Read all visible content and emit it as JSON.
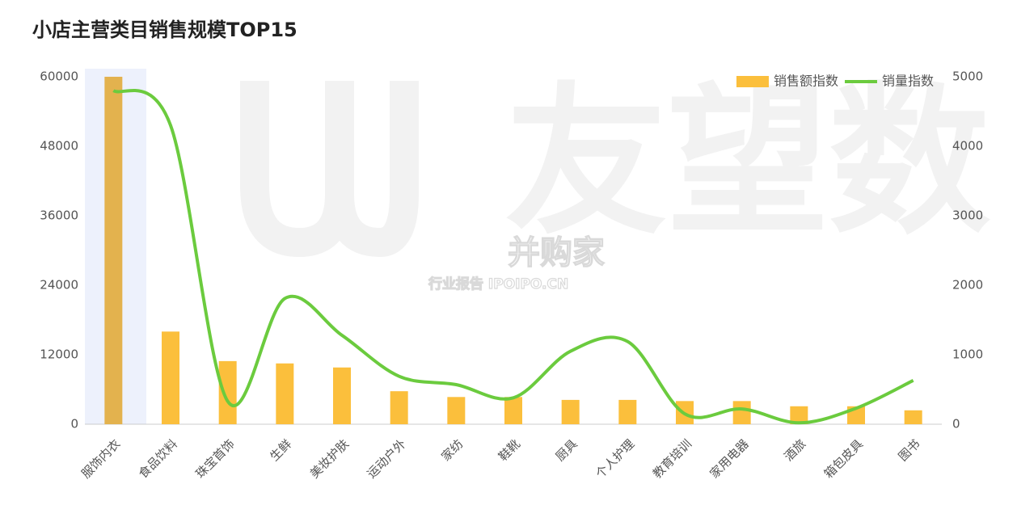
{
  "chart_data": {
    "type": "bar-line",
    "title": "小店主营类目销售规模TOP15",
    "categories": [
      "服饰内衣",
      "食品饮料",
      "珠宝首饰",
      "生鲜",
      "美妆护肤",
      "运动户外",
      "家纺",
      "鞋靴",
      "厨具",
      "个人护理",
      "教育培训",
      "家用电器",
      "酒旅",
      "箱包皮具",
      "图书"
    ],
    "series": [
      {
        "name": "销售额指数",
        "type": "bar",
        "color": "#fbbf3c",
        "values": [
          60000,
          16000,
          10900,
          10500,
          9800,
          5700,
          4700,
          4700,
          4200,
          4200,
          4000,
          4000,
          3100,
          3100,
          2400
        ]
      },
      {
        "name": "销量指数",
        "type": "line",
        "axis": "y2",
        "color": "#6bcb3e",
        "values": [
          4800,
          4300,
          330,
          1810,
          1280,
          690,
          570,
          380,
          1050,
          1190,
          150,
          220,
          20,
          230,
          630
        ]
      }
    ],
    "ylim": [
      0,
      60000
    ],
    "yticks": [
      0,
      12000,
      24000,
      36000,
      48000,
      60000
    ],
    "y2lim": [
      0,
      5000
    ],
    "y2ticks": [
      0,
      1000,
      2000,
      3000,
      4000,
      5000
    ],
    "legend": "top-right",
    "watermarks": [
      "友望数",
      "并购家",
      "行业报告 IPOIPO.CN"
    ]
  }
}
